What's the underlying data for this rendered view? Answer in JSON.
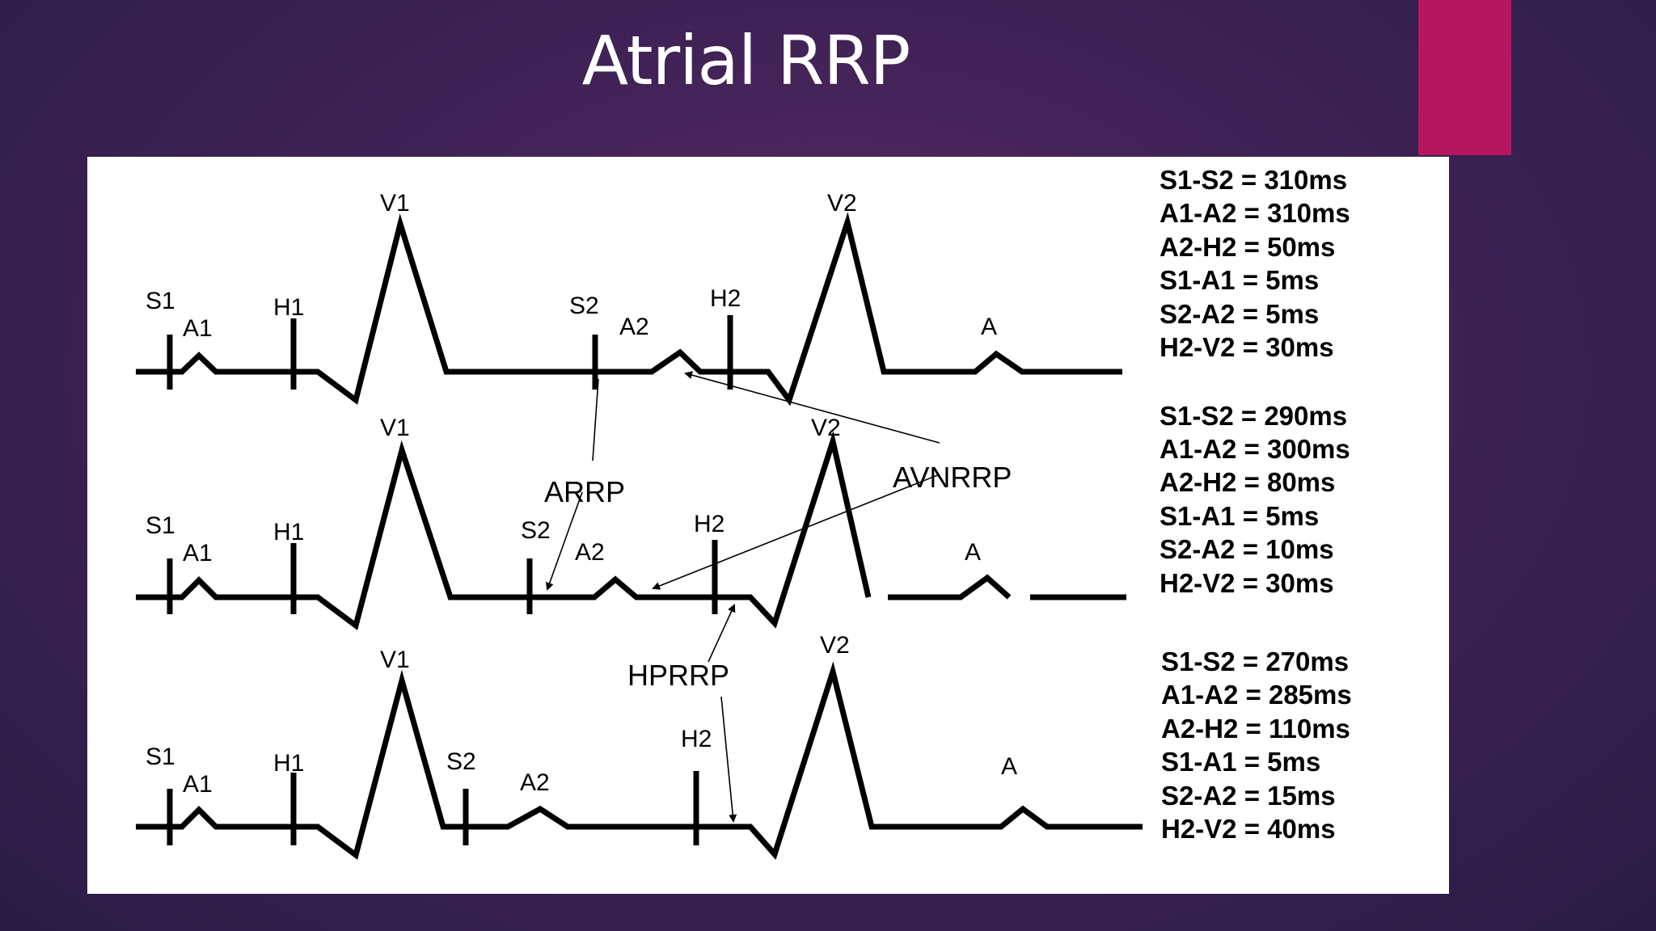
{
  "slide": {
    "title": "Atrial RRP",
    "accent_color": "#b5175f"
  },
  "diagram": {
    "strips": [
      {
        "labels": {
          "s1": "S1",
          "a1": "A1",
          "h1": "H1",
          "v1": "V1",
          "s2": "S2",
          "a2": "A2",
          "h2": "H2",
          "v2": "V2",
          "a": "A"
        },
        "stats": [
          "S1-S2 = 310ms",
          "A1-A2 = 310ms",
          "A2-H2 = 50ms",
          "S1-A1 = 5ms",
          "S2-A2 = 5ms",
          "H2-V2 = 30ms"
        ]
      },
      {
        "labels": {
          "s1": "S1",
          "a1": "A1",
          "h1": "H1",
          "v1": "V1",
          "s2": "S2",
          "a2": "A2",
          "h2": "H2",
          "v2": "V2",
          "a": "A"
        },
        "stats": [
          "S1-S2 = 290ms",
          "A1-A2 = 300ms",
          "A2-H2 = 80ms",
          "S1-A1 = 5ms",
          "S2-A2 = 10ms",
          "H2-V2 = 30ms"
        ]
      },
      {
        "labels": {
          "s1": "S1",
          "a1": "A1",
          "h1": "H1",
          "v1": "V1",
          "s2": "S2",
          "a2": "A2",
          "h2": "H2",
          "v2": "V2",
          "a": "A"
        },
        "stats": [
          "S1-S2 = 270ms",
          "A1-A2 = 285ms",
          "A2-H2 = 110ms",
          "S1-A1 = 5ms",
          "S2-A2 = 15ms",
          "H2-V2 = 40ms"
        ]
      }
    ],
    "annotations": {
      "arrp": "ARRP",
      "avnrrp": "AVNRRP",
      "hprrp": "HPRRP"
    }
  }
}
